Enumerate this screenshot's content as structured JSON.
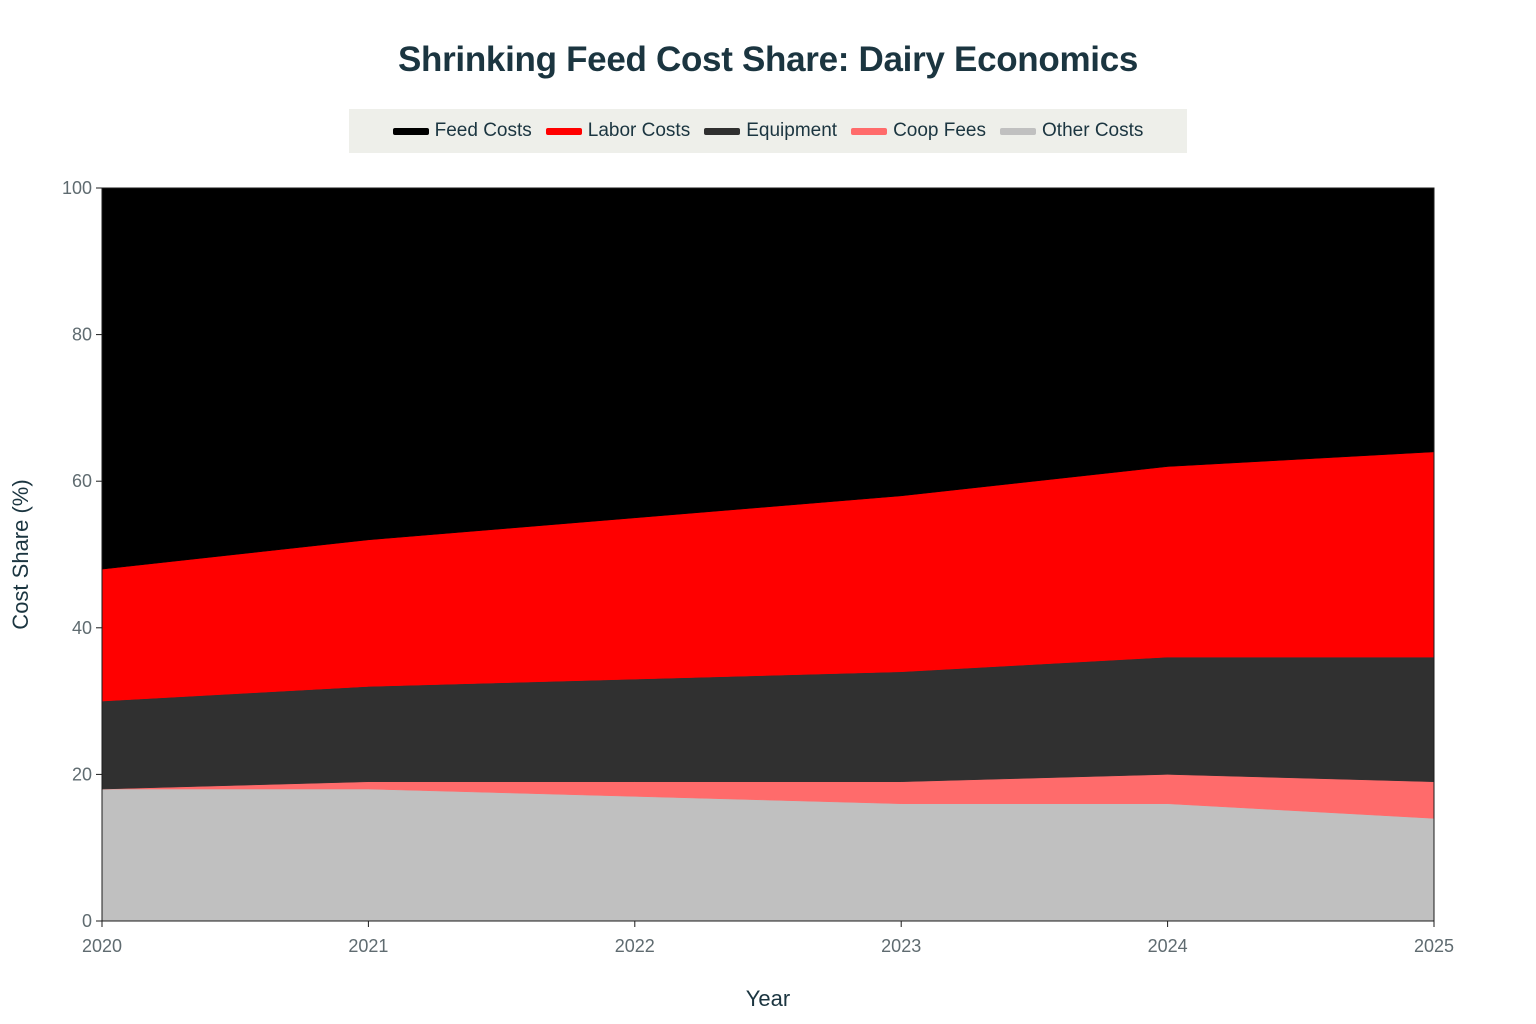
{
  "chart_data": {
    "type": "area",
    "stacked": true,
    "title": "Shrinking Feed Cost Share: Dairy Economics",
    "xlabel": "Year",
    "ylabel": "Cost Share (%)",
    "x": [
      2020,
      2021,
      2022,
      2023,
      2024,
      2025
    ],
    "x_tick_labels": [
      "2020",
      "2021",
      "2022",
      "2023",
      "2024",
      "2025"
    ],
    "ylim": [
      0,
      100
    ],
    "y_ticks": [
      0,
      20,
      40,
      60,
      80,
      100
    ],
    "y_tick_labels": [
      "0",
      "20",
      "40",
      "60",
      "80",
      "100"
    ],
    "grid": false,
    "legend_position": "top-center",
    "series": [
      {
        "name": "Feed Costs",
        "color": "#000000",
        "values": [
          52,
          48,
          45,
          42,
          38,
          36
        ]
      },
      {
        "name": "Labor Costs",
        "color": "#ff0000",
        "values": [
          18,
          20,
          22,
          24,
          26,
          28
        ]
      },
      {
        "name": "Equipment",
        "color": "#303030",
        "values": [
          12,
          13,
          14,
          15,
          16,
          17
        ]
      },
      {
        "name": "Coop Fees",
        "color": "#ff6b6b",
        "values": [
          0,
          1,
          2,
          3,
          4,
          5
        ]
      },
      {
        "name": "Other Costs",
        "color": "#c0c0c0",
        "values": [
          18,
          18,
          17,
          16,
          16,
          14
        ]
      }
    ]
  }
}
